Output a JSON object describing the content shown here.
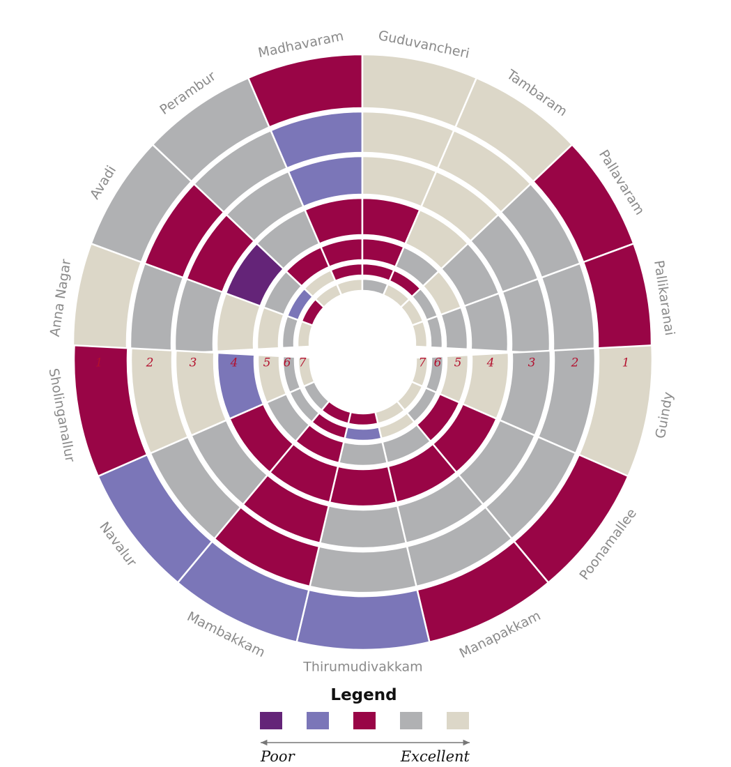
{
  "chart_data": {
    "type": "radial-heatmap",
    "ring_labels": [
      "1",
      "2",
      "3",
      "4",
      "5",
      "6",
      "7"
    ],
    "color_scale": {
      "1": "#642478",
      "2": "#7b76b8",
      "3": "#990546",
      "4": "#b0b1b3",
      "5": "#dcd7c8"
    },
    "top_half": {
      "locations": [
        "Anna Nagar",
        "Avadi",
        "Perambur",
        "Madhavaram",
        "Guduvancheri",
        "Tambaram",
        "Pallavaram",
        "Pallikaranai"
      ],
      "rings": [
        [
          5,
          4,
          4,
          3,
          5,
          5,
          3,
          3
        ],
        [
          4,
          3,
          4,
          2,
          5,
          5,
          4,
          4
        ],
        [
          4,
          3,
          4,
          2,
          5,
          5,
          4,
          4
        ],
        [
          5,
          1,
          4,
          3,
          3,
          5,
          4,
          4
        ],
        [
          5,
          4,
          3,
          3,
          3,
          4,
          5,
          4
        ],
        [
          4,
          2,
          5,
          3,
          3,
          3,
          4,
          4
        ],
        [
          5,
          3,
          5,
          5,
          4,
          5,
          5,
          5
        ]
      ]
    },
    "bottom_half": {
      "locations": [
        "Guindy",
        "Poonamallee",
        "Manapakkam",
        "Thirumudivakkam",
        "Mambakkam",
        "Navalur",
        "Sholinganallur"
      ],
      "rings": [
        [
          5,
          3,
          3,
          2,
          2,
          2,
          3
        ],
        [
          4,
          4,
          4,
          4,
          3,
          4,
          5
        ],
        [
          4,
          4,
          4,
          4,
          3,
          4,
          5
        ],
        [
          5,
          3,
          3,
          3,
          3,
          3,
          2
        ],
        [
          5,
          3,
          4,
          4,
          3,
          4,
          5
        ],
        [
          4,
          4,
          5,
          2,
          3,
          4,
          4
        ],
        [
          5,
          5,
          5,
          3,
          3,
          4,
          5
        ]
      ]
    },
    "legend": {
      "title": "Legend",
      "order": [
        1,
        2,
        3,
        4,
        5
      ],
      "low_label": "Poor",
      "high_label": "Excellent"
    }
  }
}
